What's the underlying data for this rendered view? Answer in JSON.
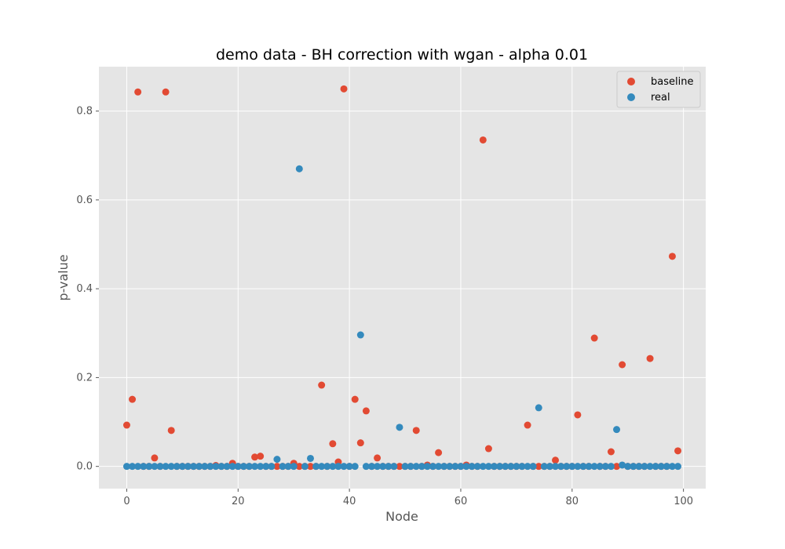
{
  "chart_data": {
    "type": "scatter",
    "title": "demo data - BH correction with wgan - alpha 0.01",
    "xlabel": "Node",
    "ylabel": "p-value",
    "xlim": [
      -5,
      104
    ],
    "ylim": [
      -0.05,
      0.9
    ],
    "xticks": [
      0,
      20,
      40,
      60,
      80,
      100
    ],
    "yticks": [
      0.0,
      0.2,
      0.4,
      0.6,
      0.8
    ],
    "xtick_labels": [
      "0",
      "20",
      "40",
      "60",
      "80",
      "100"
    ],
    "ytick_labels": [
      "0.0",
      "0.2",
      "0.4",
      "0.6",
      "0.8"
    ],
    "grid": true,
    "legend_position": "top-right",
    "series": [
      {
        "name": "baseline",
        "color": "#E24A33",
        "x": [
          0,
          1,
          2,
          3,
          4,
          5,
          6,
          7,
          8,
          9,
          10,
          11,
          12,
          13,
          14,
          15,
          16,
          17,
          18,
          19,
          20,
          21,
          22,
          23,
          24,
          25,
          26,
          27,
          28,
          29,
          30,
          31,
          32,
          33,
          34,
          35,
          36,
          37,
          38,
          39,
          40,
          41,
          42,
          43,
          44,
          45,
          46,
          47,
          48,
          49,
          50,
          51,
          52,
          53,
          54,
          55,
          56,
          57,
          58,
          59,
          60,
          61,
          62,
          63,
          64,
          65,
          66,
          67,
          68,
          69,
          70,
          71,
          72,
          73,
          74,
          75,
          76,
          77,
          78,
          79,
          80,
          81,
          82,
          83,
          84,
          85,
          86,
          87,
          88,
          89,
          90,
          91,
          92,
          93,
          94,
          95,
          96,
          97,
          98,
          99
        ],
        "y": [
          0.093,
          0.151,
          0.843,
          0.0,
          0.0,
          0.019,
          0.0,
          0.843,
          0.081,
          0.0,
          0.0,
          0.0,
          0.0,
          0.0,
          0.0,
          0.0,
          0.002,
          0.0,
          0.0,
          0.007,
          0.0,
          0.0,
          0.0,
          0.021,
          0.023,
          0.0,
          0.0,
          0.0,
          0.0,
          0.0,
          0.007,
          0.0,
          0.0,
          0.0,
          0.0,
          0.183,
          0.0,
          0.051,
          0.01,
          0.85,
          0.0,
          0.151,
          0.053,
          0.125,
          0.0,
          0.019,
          0.0,
          0.0,
          0.0,
          0.0,
          0.0,
          0.0,
          0.081,
          0.0,
          0.003,
          0.0,
          0.031,
          0.0,
          0.0,
          0.0,
          0.0,
          0.003,
          0.0,
          0.0,
          0.735,
          0.04,
          0.0,
          0.0,
          0.0,
          0.0,
          0.0,
          0.0,
          0.093,
          0.0,
          0.0,
          0.0,
          0.0,
          0.014,
          0.0,
          0.0,
          0.0,
          0.116,
          0.0,
          0.0,
          0.289,
          0.0,
          0.0,
          0.033,
          0.0,
          0.229,
          0.0,
          0.0,
          0.0,
          0.0,
          0.243,
          0.0,
          0.0,
          0.0,
          0.473,
          0.035
        ]
      },
      {
        "name": "real",
        "color": "#348ABD",
        "x": [
          0,
          1,
          2,
          3,
          4,
          5,
          6,
          7,
          8,
          9,
          10,
          11,
          12,
          13,
          14,
          15,
          16,
          17,
          18,
          19,
          20,
          21,
          22,
          23,
          24,
          25,
          26,
          27,
          28,
          29,
          30,
          31,
          32,
          33,
          34,
          35,
          36,
          37,
          38,
          39,
          40,
          41,
          42,
          43,
          44,
          45,
          46,
          47,
          48,
          49,
          50,
          51,
          52,
          53,
          54,
          55,
          56,
          57,
          58,
          59,
          60,
          61,
          62,
          63,
          64,
          65,
          66,
          67,
          68,
          69,
          70,
          71,
          72,
          73,
          74,
          75,
          76,
          77,
          78,
          79,
          80,
          81,
          82,
          83,
          84,
          85,
          86,
          87,
          88,
          89,
          90,
          91,
          92,
          93,
          94,
          95,
          96,
          97,
          98,
          99
        ],
        "y": [
          0,
          0,
          0,
          0,
          0,
          0,
          0,
          0,
          0,
          0,
          0,
          0,
          0,
          0,
          0,
          0,
          0,
          0,
          0,
          0,
          0,
          0,
          0,
          0,
          0,
          0,
          0,
          0.016,
          0,
          0,
          0,
          0.67,
          0,
          0.018,
          0,
          0,
          0,
          0,
          0,
          0,
          0,
          0,
          0.296,
          0,
          0,
          0,
          0,
          0,
          0,
          0.088,
          0,
          0,
          0,
          0,
          0,
          0,
          0,
          0,
          0,
          0,
          0,
          0,
          0,
          0,
          0,
          0,
          0,
          0,
          0,
          0,
          0,
          0,
          0,
          0,
          0.132,
          0,
          0,
          0,
          0,
          0,
          0,
          0,
          0,
          0,
          0,
          0,
          0,
          0,
          0.083,
          0.003,
          0,
          0,
          0,
          0,
          0,
          0,
          0,
          0,
          0,
          0
        ]
      }
    ]
  }
}
